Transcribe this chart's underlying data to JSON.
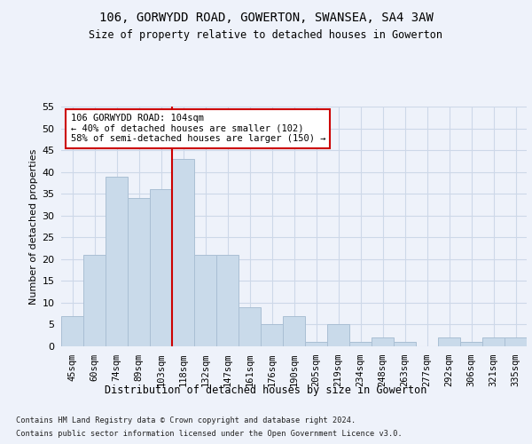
{
  "title1": "106, GORWYDD ROAD, GOWERTON, SWANSEA, SA4 3AW",
  "title2": "Size of property relative to detached houses in Gowerton",
  "xlabel": "Distribution of detached houses by size in Gowerton",
  "ylabel": "Number of detached properties",
  "categories": [
    "45sqm",
    "60sqm",
    "74sqm",
    "89sqm",
    "103sqm",
    "118sqm",
    "132sqm",
    "147sqm",
    "161sqm",
    "176sqm",
    "190sqm",
    "205sqm",
    "219sqm",
    "234sqm",
    "248sqm",
    "263sqm",
    "277sqm",
    "292sqm",
    "306sqm",
    "321sqm",
    "335sqm"
  ],
  "values": [
    7,
    21,
    39,
    34,
    36,
    43,
    21,
    21,
    9,
    5,
    7,
    1,
    5,
    1,
    2,
    1,
    0,
    2,
    1,
    2,
    2
  ],
  "bar_color": "#c9daea",
  "bar_edgecolor": "#aabfd4",
  "grid_color": "#cdd8e8",
  "vline_x_index": 4.5,
  "vline_color": "#cc0000",
  "annotation_text": "106 GORWYDD ROAD: 104sqm\n← 40% of detached houses are smaller (102)\n58% of semi-detached houses are larger (150) →",
  "annotation_box_edgecolor": "#cc0000",
  "annotation_box_facecolor": "#ffffff",
  "ylim": [
    0,
    55
  ],
  "yticks": [
    0,
    5,
    10,
    15,
    20,
    25,
    30,
    35,
    40,
    45,
    50,
    55
  ],
  "footer1": "Contains HM Land Registry data © Crown copyright and database right 2024.",
  "footer2": "Contains public sector information licensed under the Open Government Licence v3.0.",
  "bg_color": "#eef2fa"
}
